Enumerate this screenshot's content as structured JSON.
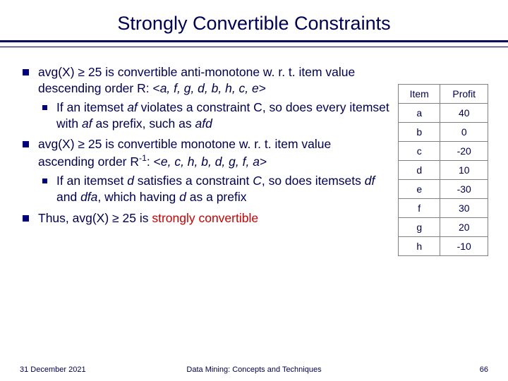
{
  "title": "Strongly Convertible Constraints",
  "bullets": {
    "b1": {
      "pre": "avg(X) ≥ 25 is convertible anti-monotone w. r. t. item value descending order R: <",
      "italic1": "a, f, g, d, b, h, c, e",
      "post": ">",
      "sub": {
        "t1": "If an itemset ",
        "i1": "af",
        "t2": " violates a constraint C, so does every itemset with ",
        "i2": "af",
        "t3": " as prefix, such as ",
        "i3": "afd"
      }
    },
    "b2": {
      "pre": "avg(X) ≥ 25 is convertible monotone w. r. t. item value ascending order R",
      "sup": "-1",
      "mid": ": <",
      "italic1": "e, c, h, b, d, g, f, a",
      "post": ">",
      "sub": {
        "t1": "If an itemset ",
        "i1": "d",
        "t2": " satisfies a constraint ",
        "i2": "C",
        "t3": ", so does itemsets ",
        "i3": "df",
        "t4": " and ",
        "i4": "dfa",
        "t5": ", which having ",
        "i5": "d",
        "t6": " as a prefix"
      }
    },
    "b3": {
      "pre": "Thus, avg(X) ≥ 25 is ",
      "strong": "strongly convertible"
    }
  },
  "table": {
    "headers": {
      "c1": "Item",
      "c2": "Profit"
    },
    "rows": [
      {
        "item": "a",
        "profit": "40"
      },
      {
        "item": "b",
        "profit": "0"
      },
      {
        "item": "c",
        "profit": "-20"
      },
      {
        "item": "d",
        "profit": "10"
      },
      {
        "item": "e",
        "profit": "-30"
      },
      {
        "item": "f",
        "profit": "30"
      },
      {
        "item": "g",
        "profit": "20"
      },
      {
        "item": "h",
        "profit": "-10"
      }
    ]
  },
  "footer": {
    "date": "31 December 2021",
    "center": "Data Mining: Concepts and Techniques",
    "page": "66"
  }
}
